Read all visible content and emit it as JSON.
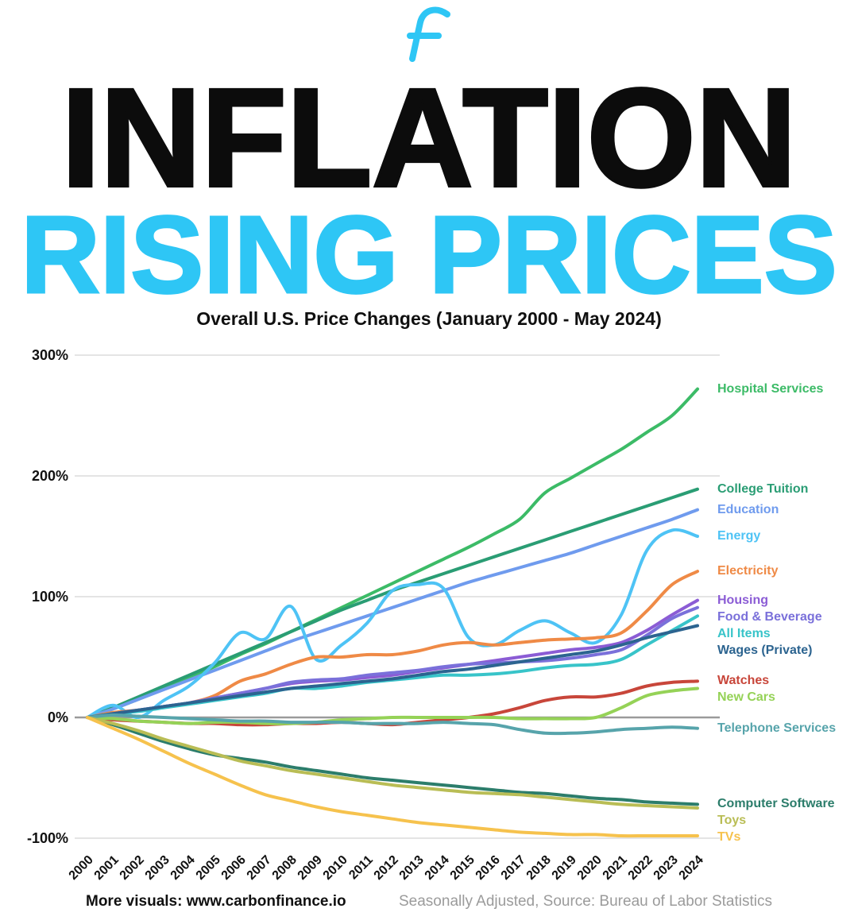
{
  "theme": {
    "accent_cyan": "#2ec6f5",
    "title_black": "#0c0c0c",
    "grid_color": "#e4e4e4",
    "zero_line_color": "#9a9a9a"
  },
  "icons": {
    "logo": "stylized-f-logo-icon"
  },
  "header": {
    "title": "INFLATION",
    "subtitle": "RISING PRICES",
    "chart_title": "Overall U.S. Price Changes (January 2000 - May 2024)"
  },
  "footer": {
    "left_label": "More visuals:",
    "left_url": "www.carbonfinance.io",
    "right": "Seasonally Adjusted, Source: Bureau of Labor Statistics"
  },
  "chart_data": {
    "type": "line",
    "title": "Overall U.S. Price Changes (January 2000 - May 2024)",
    "xlabel": "",
    "ylabel": "",
    "unit": "%",
    "grid": true,
    "legend_position": "right-edge-labels",
    "ylim": [
      -100,
      300
    ],
    "yticks": [
      300,
      200,
      100,
      0,
      -100
    ],
    "ytick_labels": [
      "300%",
      "200%",
      "100%",
      "0%",
      "-100%"
    ],
    "x": [
      2000,
      2001,
      2002,
      2003,
      2004,
      2005,
      2006,
      2007,
      2008,
      2009,
      2010,
      2011,
      2012,
      2013,
      2014,
      2015,
      2016,
      2017,
      2018,
      2019,
      2020,
      2021,
      2022,
      2023,
      2024
    ],
    "series": [
      {
        "name": "Hospital Services",
        "color": "#3cbb67",
        "values": [
          0,
          7,
          15,
          24,
          33,
          42,
          52,
          61,
          71,
          81,
          91,
          101,
          111,
          121,
          131,
          141,
          152,
          164,
          186,
          198,
          210,
          222,
          236,
          250,
          272
        ]
      },
      {
        "name": "College Tuition",
        "color": "#2a9d74",
        "values": [
          0,
          8,
          17,
          26,
          35,
          44,
          53,
          62,
          71,
          80,
          89,
          97,
          105,
          112,
          119,
          126,
          133,
          140,
          147,
          154,
          161,
          168,
          175,
          182,
          189
        ]
      },
      {
        "name": "Education",
        "color": "#6f9bee",
        "values": [
          0,
          7,
          15,
          23,
          31,
          39,
          47,
          55,
          63,
          70,
          77,
          84,
          91,
          98,
          105,
          112,
          118,
          124,
          130,
          136,
          143,
          150,
          157,
          164,
          172
        ]
      },
      {
        "name": "Energy",
        "color": "#4ec3f5",
        "values": [
          0,
          10,
          0,
          14,
          26,
          45,
          70,
          65,
          92,
          48,
          60,
          78,
          105,
          110,
          107,
          66,
          60,
          72,
          80,
          70,
          62,
          85,
          138,
          155,
          150
        ]
      },
      {
        "name": "Electricity",
        "color": "#ef8a46",
        "values": [
          0,
          4,
          6,
          9,
          12,
          18,
          30,
          36,
          44,
          50,
          50,
          52,
          52,
          55,
          60,
          62,
          60,
          62,
          64,
          65,
          66,
          70,
          88,
          110,
          121
        ]
      },
      {
        "name": "Housing",
        "color": "#8b5cd5",
        "values": [
          0,
          3,
          6,
          9,
          12,
          16,
          20,
          24,
          28,
          30,
          31,
          33,
          35,
          38,
          41,
          44,
          47,
          50,
          53,
          56,
          58,
          62,
          72,
          85,
          97
        ]
      },
      {
        "name": "Food & Beverage",
        "color": "#7a70da",
        "values": [
          0,
          3,
          6,
          9,
          12,
          16,
          20,
          24,
          29,
          31,
          32,
          35,
          37,
          39,
          42,
          44,
          45,
          46,
          47,
          49,
          52,
          56,
          68,
          82,
          91
        ]
      },
      {
        "name": "All Items",
        "color": "#38c4c9",
        "values": [
          0,
          3,
          5,
          8,
          11,
          14,
          17,
          20,
          24,
          24,
          26,
          29,
          31,
          33,
          35,
          35,
          36,
          38,
          41,
          43,
          44,
          48,
          60,
          72,
          84
        ]
      },
      {
        "name": "Wages (Private)",
        "color": "#2c6490",
        "values": [
          0,
          3,
          6,
          9,
          12,
          15,
          18,
          21,
          24,
          26,
          28,
          30,
          32,
          35,
          38,
          40,
          43,
          46,
          49,
          52,
          55,
          60,
          66,
          71,
          76
        ]
      },
      {
        "name": "Watches",
        "color": "#c8463a",
        "values": [
          0,
          -2,
          -3,
          -4,
          -5,
          -5,
          -6,
          -6,
          -5,
          -5,
          -4,
          -5,
          -6,
          -4,
          -2,
          0,
          3,
          8,
          14,
          17,
          17,
          20,
          26,
          29,
          30
        ]
      },
      {
        "name": "New Cars",
        "color": "#95d257",
        "values": [
          0,
          -1,
          -3,
          -4,
          -5,
          -4,
          -4,
          -5,
          -5,
          -4,
          -2,
          -1,
          0,
          0,
          0,
          0,
          0,
          -1,
          -1,
          -1,
          0,
          8,
          18,
          22,
          24
        ]
      },
      {
        "name": "Telephone Services",
        "color": "#57a4ab",
        "values": [
          0,
          2,
          1,
          0,
          -1,
          -2,
          -3,
          -3,
          -4,
          -4,
          -4,
          -5,
          -5,
          -5,
          -4,
          -5,
          -6,
          -10,
          -13,
          -13,
          -12,
          -10,
          -9,
          -8,
          -9
        ]
      },
      {
        "name": "Computer Software",
        "color": "#2c7d6b",
        "values": [
          0,
          -6,
          -13,
          -20,
          -26,
          -31,
          -34,
          -37,
          -41,
          -44,
          -47,
          -50,
          -52,
          -54,
          -56,
          -58,
          -60,
          -62,
          -63,
          -65,
          -67,
          -68,
          -70,
          -71,
          -72
        ]
      },
      {
        "name": "Toys",
        "color": "#b9bd55",
        "values": [
          0,
          -5,
          -11,
          -18,
          -24,
          -30,
          -36,
          -40,
          -44,
          -47,
          -50,
          -53,
          -56,
          -58,
          -60,
          -62,
          -63,
          -64,
          -66,
          -68,
          -70,
          -72,
          -73,
          -74,
          -75
        ]
      },
      {
        "name": "TVs",
        "color": "#f6c24d",
        "values": [
          0,
          -9,
          -18,
          -28,
          -38,
          -47,
          -56,
          -64,
          -69,
          -74,
          -78,
          -81,
          -84,
          -87,
          -89,
          -91,
          -93,
          -95,
          -96,
          -97,
          -97,
          -98,
          -98,
          -98,
          -98
        ]
      }
    ]
  }
}
